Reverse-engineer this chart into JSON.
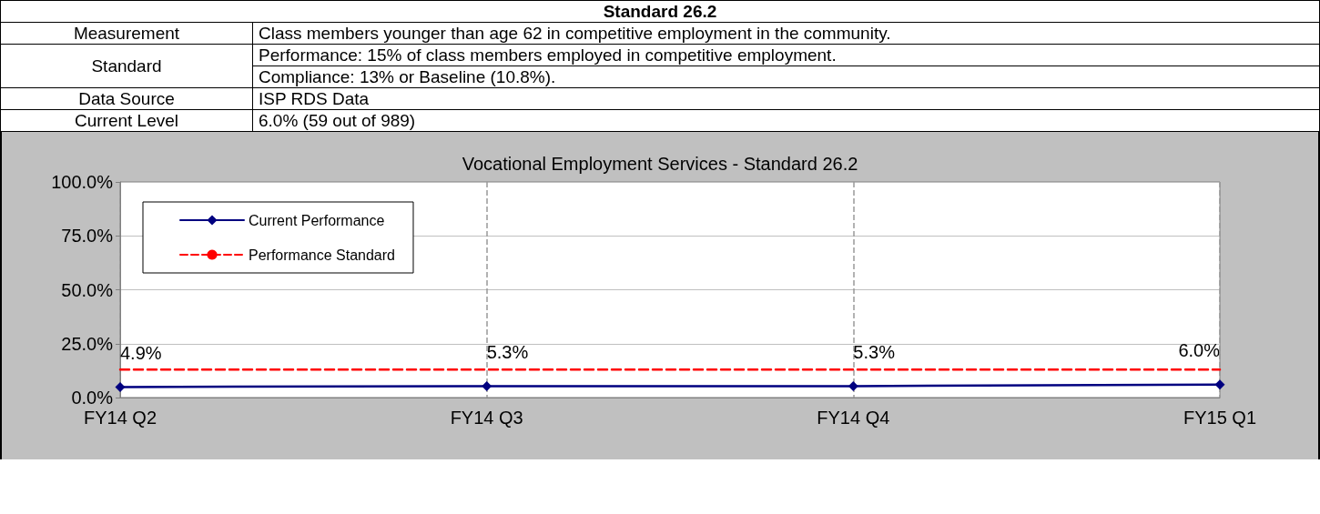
{
  "chart_data": {
    "type": "line",
    "title": "Vocational Employment Services - Standard 26.2",
    "annotations": [
      "Standard 26.2",
      "Measurement",
      "Class members younger than age 62 in competitive employment in the community.",
      "Standard",
      "Performance: 15% of class members employed in competitive employment.",
      "Compliance: 13% or Baseline (10.8%).",
      "Data Source",
      "ISP RDS Data",
      "Current Level",
      "6.0% (59 out of 989)"
    ],
    "categories": [
      "FY14 Q2",
      "FY14 Q3",
      "FY14 Q4",
      "FY15 Q1"
    ],
    "series": [
      {
        "name": "Current Performance",
        "color": "#000080",
        "values": [
          4.9,
          5.3,
          5.3,
          6.0
        ],
        "value_labels": [
          "4.9%",
          "5.3%",
          "5.3%",
          "6.0%"
        ],
        "marker": "diamond",
        "line_style": "solid"
      },
      {
        "name": "Performance Standard",
        "color": "#ff0000",
        "values": [
          13,
          13,
          13,
          13
        ],
        "marker": "none",
        "line_style": "dashed"
      }
    ],
    "ylim": [
      0,
      100
    ],
    "yticks": [
      {
        "value": 0,
        "label": "0.0%"
      },
      {
        "value": 25,
        "label": "25.0%"
      },
      {
        "value": 50,
        "label": "50.0%"
      },
      {
        "value": 75,
        "label": "75.0%"
      },
      {
        "value": 100,
        "label": "100.0%"
      }
    ],
    "grid": true,
    "legend": "top left"
  }
}
